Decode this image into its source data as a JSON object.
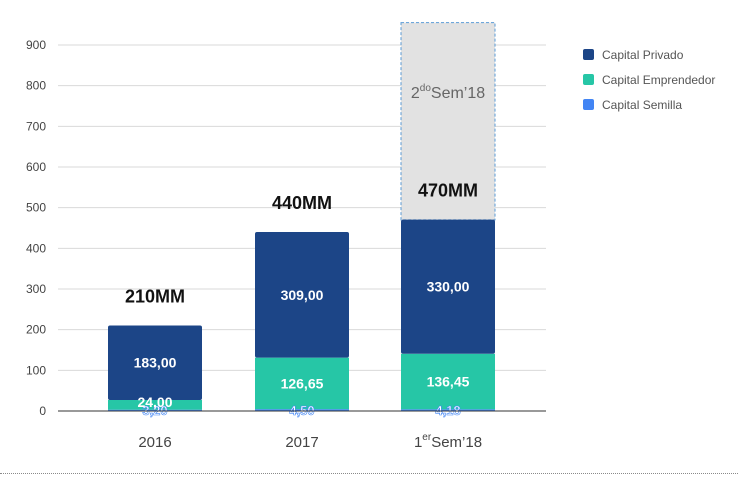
{
  "chart_data": {
    "type": "bar",
    "stacked": true,
    "categories": [
      {
        "base": "2016",
        "sup": "",
        "rest": ""
      },
      {
        "base": "2017",
        "sup": "",
        "rest": ""
      },
      {
        "base": "1",
        "sup": "er",
        "rest": "Sem’18"
      }
    ],
    "series": [
      {
        "name": "Capital Semilla",
        "color": "#4285f4",
        "values": [
          3.2,
          4.5,
          4.18
        ],
        "labels": [
          "3,20",
          "4,50",
          "4,18"
        ]
      },
      {
        "name": "Capital Emprendedor",
        "color": "#26c6a6",
        "values": [
          24.0,
          126.65,
          136.45
        ],
        "labels": [
          "24,00",
          "126,65",
          "136,45"
        ]
      },
      {
        "name": "Capital Privado",
        "color": "#1c4587",
        "values": [
          183.0,
          309.0,
          330.0
        ],
        "labels": [
          "183,00",
          "309,00",
          "330,00"
        ]
      }
    ],
    "totals": [
      "210MM",
      "440MM",
      "470MM"
    ],
    "projection": {
      "category_index": 2,
      "from": 470,
      "to": 955,
      "label_base": "2",
      "label_sup": "do",
      "label_rest": "Sem’18",
      "fill": "#e2e2e2",
      "stroke": "#5b9bd5"
    },
    "ylim": [
      0,
      900
    ],
    "yticks": [
      0,
      100,
      200,
      300,
      400,
      500,
      600,
      700,
      800,
      900
    ],
    "grid": true,
    "legend_position": "right",
    "legend_order": [
      "Capital Privado",
      "Capital Emprendedor",
      "Capital Semilla"
    ]
  }
}
